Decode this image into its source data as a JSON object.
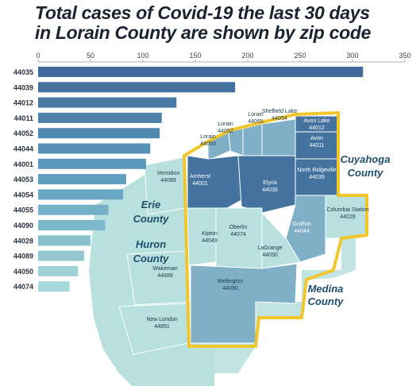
{
  "title_lines": [
    "Total cases of Covid-19 the last 30 days",
    "in Lorain County are shown by zip code"
  ],
  "colors": {
    "bar_dark": "#3f6a9a",
    "bar_mid": "#5f9fc0",
    "bar_light": "#a8d9db",
    "map_dark": "#44739f",
    "map_mid": "#7fb0c7",
    "map_light": "#b7e0de",
    "outline": "#f1c62c"
  },
  "chart_data": {
    "type": "bar",
    "orientation": "horizontal",
    "categories": [
      "44035",
      "44039",
      "44012",
      "44011",
      "44052",
      "44044",
      "44001",
      "44053",
      "44054",
      "44055",
      "44090",
      "44028",
      "44089",
      "44050",
      "44074"
    ],
    "values": [
      310,
      188,
      132,
      118,
      116,
      107,
      103,
      84,
      81,
      67,
      64,
      50,
      44,
      38,
      30
    ],
    "xticks": [
      0,
      50,
      100,
      150,
      200,
      250,
      300,
      350
    ],
    "xlim": [
      0,
      350
    ],
    "title": "",
    "xlabel": "",
    "ylabel": ""
  },
  "map": {
    "regions": [
      {
        "name": "Avon Lake",
        "zip": "44012",
        "shade": "dark"
      },
      {
        "name": "Avon",
        "zip": "44011",
        "shade": "dark"
      },
      {
        "name": "North Ridgeville",
        "zip": "44039",
        "shade": "dark"
      },
      {
        "name": "Sheffield Lake",
        "zip": "44054",
        "shade": "mid"
      },
      {
        "name": "Lorain",
        "zip": "44055",
        "shade": "mid"
      },
      {
        "name": "Lorain",
        "zip": "44052",
        "shade": "mid"
      },
      {
        "name": "Lorain",
        "zip": "44053",
        "shade": "mid"
      },
      {
        "name": "Vermilion",
        "zip": "44089",
        "shade": "light"
      },
      {
        "name": "Amherst",
        "zip": "44001",
        "shade": "dark"
      },
      {
        "name": "Elyria",
        "zip": "44035",
        "shade": "dark"
      },
      {
        "name": "Grafton",
        "zip": "44044",
        "shade": "mid"
      },
      {
        "name": "Columbia Station",
        "zip": "44028",
        "shade": "light"
      },
      {
        "name": "Kipton",
        "zip": "44049",
        "shade": "light"
      },
      {
        "name": "Oberlin",
        "zip": "44074",
        "shade": "light"
      },
      {
        "name": "LaGrange",
        "zip": "44050",
        "shade": "light"
      },
      {
        "name": "Wellington",
        "zip": "44090",
        "shade": "mid"
      },
      {
        "name": "Wakeman",
        "zip": "44889",
        "shade": "light"
      },
      {
        "name": "New London",
        "zip": "44851",
        "shade": "light"
      }
    ],
    "counties": [
      "Erie County",
      "Huron County",
      "Cuyahoga County",
      "Medina County"
    ]
  }
}
